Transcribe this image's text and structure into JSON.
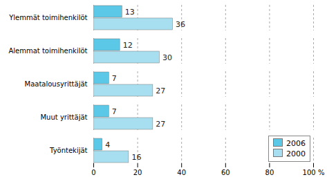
{
  "chart_data": {
    "type": "bar",
    "orientation": "horizontal",
    "categories": [
      "Ylemmät toimihenkilöt",
      "Alemmat toimihenkilöt",
      "Maatalousyrittäjät",
      "Muut yrittäjät",
      "Työntekijät"
    ],
    "series": [
      {
        "name": "2006",
        "color": "#5bc8e8",
        "values": [
          13,
          12,
          7,
          7,
          4
        ]
      },
      {
        "name": "2000",
        "color": "#a8dff0",
        "values": [
          36,
          30,
          27,
          27,
          16
        ]
      }
    ],
    "xlim": [
      0,
      100
    ],
    "xticks": [
      0,
      20,
      40,
      60,
      80,
      {
        "value": 100,
        "label": "100 %"
      }
    ],
    "grid": true,
    "legend": "lower right",
    "data_labels": true
  }
}
